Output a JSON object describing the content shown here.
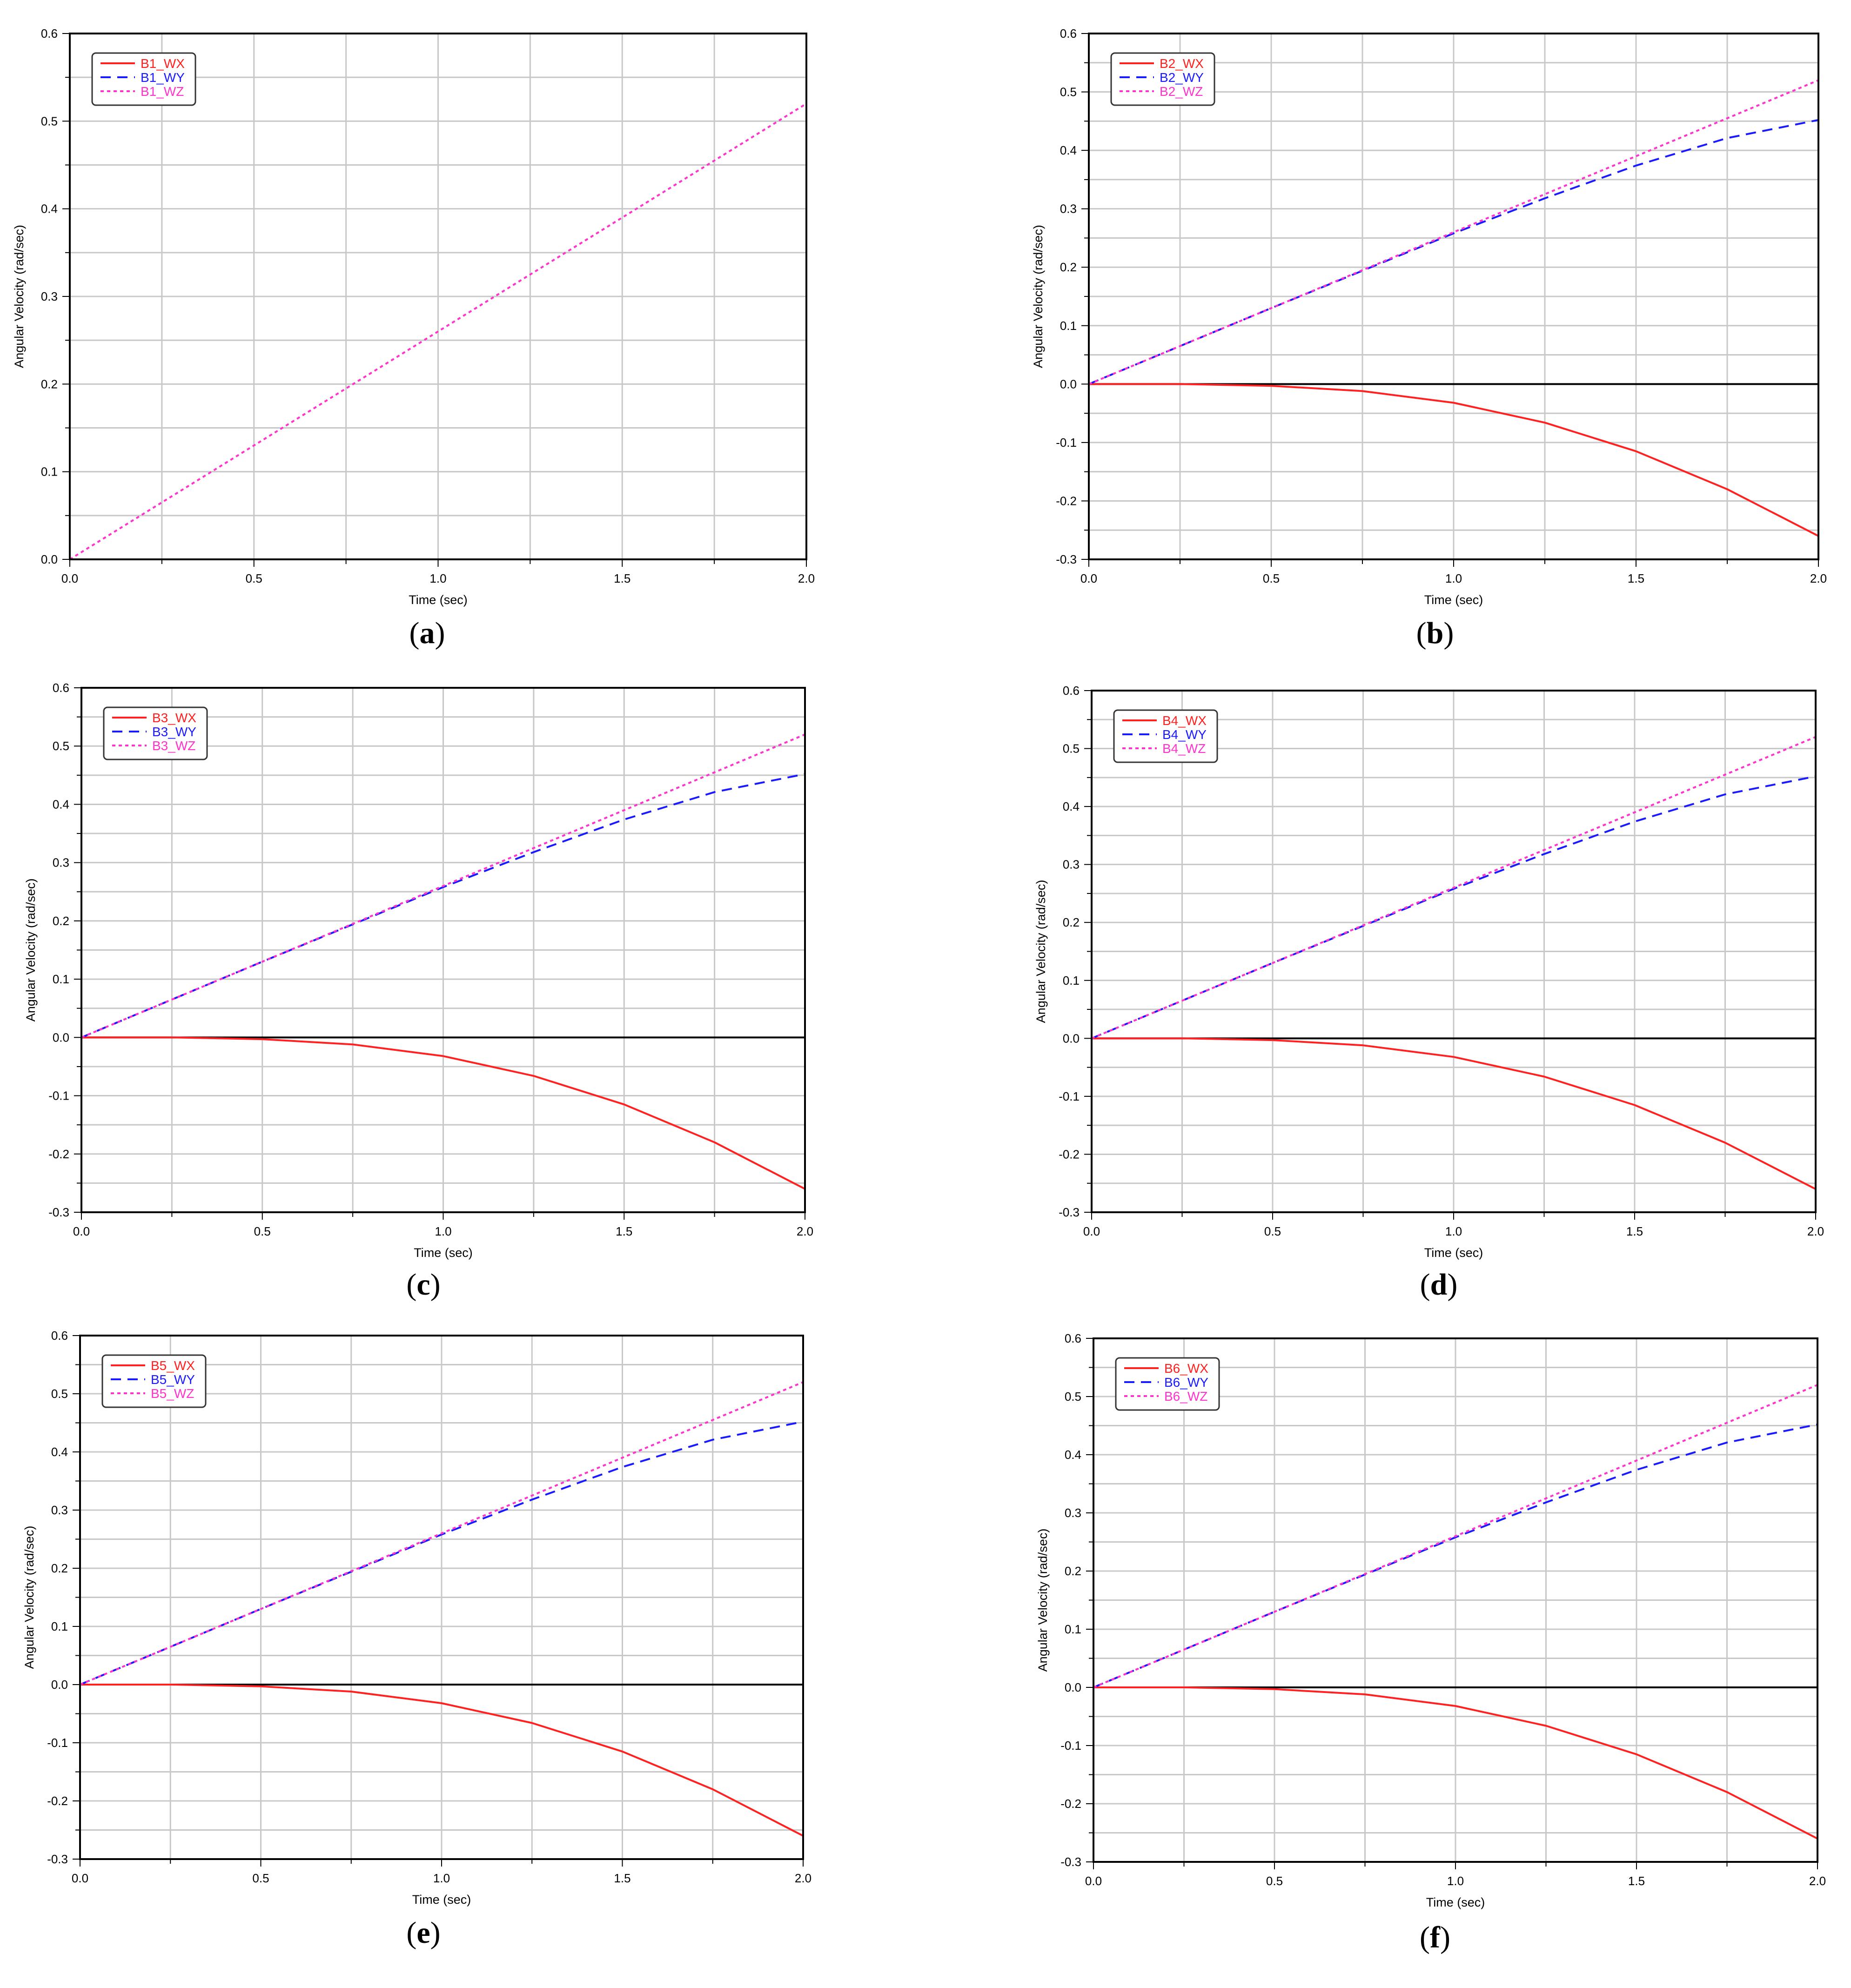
{
  "figure": {
    "background": "#ffffff"
  },
  "series_styles": {
    "WX": {
      "color": "#ff2020",
      "dash": "solid"
    },
    "WY": {
      "color": "#1a1aff",
      "dash": "dashed"
    },
    "WZ": {
      "color": "#ff33cc",
      "dash": "dotted"
    }
  },
  "chart_data": [
    {
      "type": "line",
      "caption": "a",
      "xlabel": "Time (sec)",
      "ylabel": "Angular Velocity (rad/sec)",
      "xlim": [
        0.0,
        2.0
      ],
      "ylim": [
        0.0,
        0.6
      ],
      "xticks": [
        "0.0",
        "0.5",
        "1.0",
        "1.5",
        "2.0"
      ],
      "yticks": [
        "0.0",
        "0.1",
        "0.2",
        "0.3",
        "0.4",
        "0.5",
        "0.6"
      ],
      "x": [
        0.0,
        0.25,
        0.5,
        0.75,
        1.0,
        1.25,
        1.5,
        1.75,
        2.0
      ],
      "series": [
        {
          "name": "B1_WX",
          "key": "WX",
          "values": [
            0.0,
            0.0,
            0.0,
            0.0,
            0.0,
            0.0,
            0.0,
            0.0,
            0.0
          ]
        },
        {
          "name": "B1_WY",
          "key": "WY",
          "values": [
            0.0,
            0.0,
            0.0,
            0.0,
            0.0,
            0.0,
            0.0,
            0.0,
            0.0
          ]
        },
        {
          "name": "B1_WZ",
          "key": "WZ",
          "values": [
            0.0,
            0.065,
            0.13,
            0.195,
            0.26,
            0.325,
            0.39,
            0.455,
            0.52
          ]
        }
      ],
      "legend": "top-left"
    },
    {
      "type": "line",
      "caption": "b",
      "xlabel": "Time (sec)",
      "ylabel": "Angular Velocity (rad/sec)",
      "xlim": [
        0.0,
        2.0
      ],
      "ylim": [
        -0.3,
        0.6
      ],
      "xticks": [
        "0.0",
        "0.5",
        "1.0",
        "1.5",
        "2.0"
      ],
      "yticks": [
        "-0.3",
        "-0.2",
        "-0.1",
        "0.0",
        "0.1",
        "0.2",
        "0.3",
        "0.4",
        "0.5",
        "0.6"
      ],
      "x": [
        0.0,
        0.25,
        0.5,
        0.75,
        1.0,
        1.25,
        1.5,
        1.75,
        2.0
      ],
      "series": [
        {
          "name": "B2_WX",
          "key": "WX",
          "values": [
            0.0,
            0.0,
            -0.003,
            -0.012,
            -0.032,
            -0.066,
            -0.115,
            -0.18,
            -0.26
          ]
        },
        {
          "name": "B2_WY",
          "key": "WY",
          "values": [
            0.0,
            0.065,
            0.13,
            0.194,
            0.258,
            0.318,
            0.374,
            0.421,
            0.452
          ]
        },
        {
          "name": "B2_WZ",
          "key": "WZ",
          "values": [
            0.0,
            0.065,
            0.13,
            0.195,
            0.26,
            0.325,
            0.39,
            0.455,
            0.52
          ]
        }
      ],
      "legend": "top-left"
    },
    {
      "type": "line",
      "caption": "c",
      "xlabel": "Time (sec)",
      "ylabel": "Angular Velocity (rad/sec)",
      "xlim": [
        0.0,
        2.0
      ],
      "ylim": [
        -0.3,
        0.6
      ],
      "xticks": [
        "0.0",
        "0.5",
        "1.0",
        "1.5",
        "2.0"
      ],
      "yticks": [
        "-0.3",
        "-0.2",
        "-0.1",
        "0.0",
        "0.1",
        "0.2",
        "0.3",
        "0.4",
        "0.5",
        "0.6"
      ],
      "x": [
        0.0,
        0.25,
        0.5,
        0.75,
        1.0,
        1.25,
        1.5,
        1.75,
        2.0
      ],
      "series": [
        {
          "name": "B3_WX",
          "key": "WX",
          "values": [
            0.0,
            0.0,
            -0.003,
            -0.012,
            -0.032,
            -0.066,
            -0.115,
            -0.18,
            -0.26
          ]
        },
        {
          "name": "B3_WY",
          "key": "WY",
          "values": [
            0.0,
            0.065,
            0.13,
            0.194,
            0.258,
            0.318,
            0.374,
            0.421,
            0.452
          ]
        },
        {
          "name": "B3_WZ",
          "key": "WZ",
          "values": [
            0.0,
            0.065,
            0.13,
            0.195,
            0.26,
            0.325,
            0.39,
            0.455,
            0.52
          ]
        }
      ],
      "legend": "top-left"
    },
    {
      "type": "line",
      "caption": "d",
      "xlabel": "Time (sec)",
      "ylabel": "Angular Velocity (rad/sec)",
      "xlim": [
        0.0,
        2.0
      ],
      "ylim": [
        -0.3,
        0.6
      ],
      "xticks": [
        "0.0",
        "0.5",
        "1.0",
        "1.5",
        "2.0"
      ],
      "yticks": [
        "-0.3",
        "-0.2",
        "-0.1",
        "0.0",
        "0.1",
        "0.2",
        "0.3",
        "0.4",
        "0.5",
        "0.6"
      ],
      "x": [
        0.0,
        0.25,
        0.5,
        0.75,
        1.0,
        1.25,
        1.5,
        1.75,
        2.0
      ],
      "series": [
        {
          "name": "B4_WX",
          "key": "WX",
          "values": [
            0.0,
            0.0,
            -0.003,
            -0.012,
            -0.032,
            -0.066,
            -0.115,
            -0.18,
            -0.26
          ]
        },
        {
          "name": "B4_WY",
          "key": "WY",
          "values": [
            0.0,
            0.065,
            0.13,
            0.194,
            0.258,
            0.318,
            0.374,
            0.421,
            0.452
          ]
        },
        {
          "name": "B4_WZ",
          "key": "WZ",
          "values": [
            0.0,
            0.065,
            0.13,
            0.195,
            0.26,
            0.325,
            0.39,
            0.455,
            0.52
          ]
        }
      ],
      "legend": "top-left"
    },
    {
      "type": "line",
      "caption": "e",
      "xlabel": "Time (sec)",
      "ylabel": "Angular Velocity (rad/sec)",
      "xlim": [
        0.0,
        2.0
      ],
      "ylim": [
        -0.3,
        0.6
      ],
      "xticks": [
        "0.0",
        "0.5",
        "1.0",
        "1.5",
        "2.0"
      ],
      "yticks": [
        "-0.3",
        "-0.2",
        "-0.1",
        "0.0",
        "0.1",
        "0.2",
        "0.3",
        "0.4",
        "0.5",
        "0.6"
      ],
      "x": [
        0.0,
        0.25,
        0.5,
        0.75,
        1.0,
        1.25,
        1.5,
        1.75,
        2.0
      ],
      "series": [
        {
          "name": "B5_WX",
          "key": "WX",
          "values": [
            0.0,
            0.0,
            -0.003,
            -0.012,
            -0.032,
            -0.066,
            -0.115,
            -0.18,
            -0.26
          ]
        },
        {
          "name": "B5_WY",
          "key": "WY",
          "values": [
            0.0,
            0.065,
            0.13,
            0.194,
            0.258,
            0.318,
            0.374,
            0.421,
            0.452
          ]
        },
        {
          "name": "B5_WZ",
          "key": "WZ",
          "values": [
            0.0,
            0.065,
            0.13,
            0.195,
            0.26,
            0.325,
            0.39,
            0.455,
            0.52
          ]
        }
      ],
      "legend": "top-left"
    },
    {
      "type": "line",
      "caption": "f",
      "xlabel": "Time (sec)",
      "ylabel": "Angular Velocity (rad/sec)",
      "xlim": [
        0.0,
        2.0
      ],
      "ylim": [
        -0.3,
        0.6
      ],
      "xticks": [
        "0.0",
        "0.5",
        "1.0",
        "1.5",
        "2.0"
      ],
      "yticks": [
        "-0.3",
        "-0.2",
        "-0.1",
        "0.0",
        "0.1",
        "0.2",
        "0.3",
        "0.4",
        "0.5",
        "0.6"
      ],
      "x": [
        0.0,
        0.25,
        0.5,
        0.75,
        1.0,
        1.25,
        1.5,
        1.75,
        2.0
      ],
      "series": [
        {
          "name": "B6_WX",
          "key": "WX",
          "values": [
            0.0,
            0.0,
            -0.003,
            -0.012,
            -0.032,
            -0.066,
            -0.115,
            -0.18,
            -0.26
          ]
        },
        {
          "name": "B6_WY",
          "key": "WY",
          "values": [
            0.0,
            0.065,
            0.13,
            0.194,
            0.258,
            0.318,
            0.374,
            0.421,
            0.452
          ]
        },
        {
          "name": "B6_WZ",
          "key": "WZ",
          "values": [
            0.0,
            0.065,
            0.13,
            0.195,
            0.26,
            0.325,
            0.39,
            0.455,
            0.52
          ]
        }
      ],
      "legend": "top-left"
    }
  ]
}
